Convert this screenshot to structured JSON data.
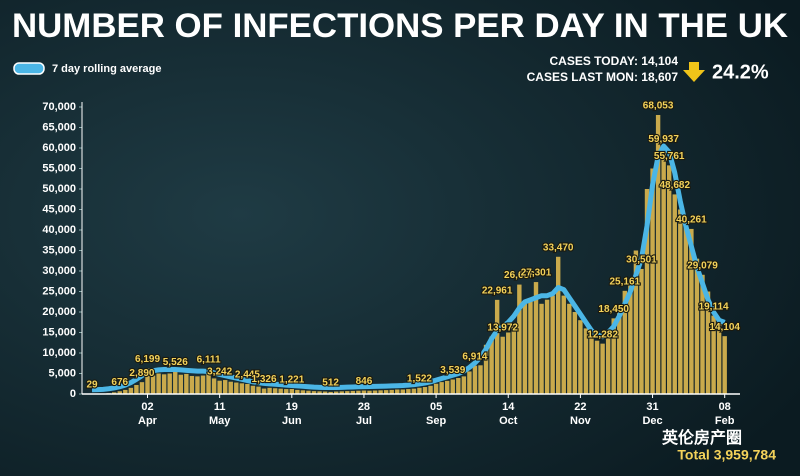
{
  "chart_data": {
    "type": "bar",
    "title": "NUMBER OF INFECTIONS PER DAY IN THE UK",
    "annotations": {
      "cases_today": "CASES TODAY: 14,104",
      "cases_last_mon": "CASES LAST MON: 18,607",
      "change": "24.2%",
      "total": "Total 3,959,784",
      "watermark": "英伦房产圈"
    },
    "categories": [
      null,
      null,
      null,
      null,
      null,
      null,
      null,
      null,
      null,
      null,
      "02 Apr",
      null,
      null,
      null,
      null,
      null,
      null,
      null,
      null,
      null,
      null,
      null,
      null,
      "11 May",
      null,
      null,
      null,
      null,
      null,
      null,
      null,
      null,
      null,
      null,
      null,
      null,
      "19 Jun",
      null,
      null,
      null,
      null,
      null,
      null,
      null,
      null,
      null,
      null,
      null,
      null,
      "28 Jul",
      null,
      null,
      null,
      null,
      null,
      null,
      null,
      null,
      null,
      null,
      null,
      null,
      "05 Sep",
      null,
      null,
      null,
      null,
      null,
      null,
      null,
      null,
      null,
      null,
      null,
      null,
      "14 Oct",
      null,
      null,
      null,
      null,
      null,
      null,
      null,
      null,
      null,
      null,
      null,
      null,
      "22 Nov",
      null,
      null,
      null,
      null,
      null,
      null,
      null,
      null,
      null,
      null,
      null,
      null,
      "31 Dec",
      null,
      null,
      null,
      null,
      null,
      null,
      null,
      null,
      null,
      null,
      null,
      null,
      "08 Feb"
    ],
    "values": [
      29,
      50,
      80,
      200,
      400,
      676,
      1000,
      1500,
      2200,
      2890,
      6199,
      4500,
      5000,
      4800,
      5000,
      5526,
      4700,
      4900,
      4400,
      4300,
      4500,
      6111,
      3800,
      3242,
      3400,
      3000,
      2800,
      2600,
      2445,
      2000,
      1800,
      1326,
      1500,
      1400,
      1300,
      1200,
      1221,
      1000,
      900,
      800,
      700,
      650,
      600,
      512,
      600,
      650,
      700,
      750,
      800,
      846,
      800,
      850,
      900,
      950,
      1000,
      1100,
      1100,
      1200,
      1300,
      1522,
      1700,
      2000,
      2500,
      2900,
      3200,
      3539,
      3900,
      4300,
      5500,
      6914,
      7000,
      12000,
      14000,
      22961,
      13972,
      15000,
      17000,
      26688,
      22000,
      23000,
      27301,
      22000,
      23000,
      24000,
      33470,
      24000,
      22000,
      20000,
      18000,
      16000,
      14000,
      13000,
      12282,
      15000,
      18450,
      20000,
      25161,
      27000,
      35000,
      30501,
      50000,
      55000,
      68053,
      59937,
      55761,
      48682,
      45000,
      42000,
      40261,
      33000,
      29079,
      25000,
      19114,
      18000,
      14104
    ],
    "value_labels": [
      "29",
      null,
      null,
      null,
      null,
      "676",
      null,
      null,
      null,
      "2,890",
      "6,199",
      null,
      null,
      null,
      null,
      "5,526",
      null,
      null,
      null,
      null,
      null,
      "6,111",
      null,
      "3,242",
      null,
      null,
      null,
      null,
      "2,445",
      null,
      null,
      "1,326",
      null,
      null,
      null,
      null,
      "1,221",
      null,
      null,
      null,
      null,
      null,
      null,
      "512",
      null,
      null,
      null,
      null,
      null,
      "846",
      null,
      null,
      null,
      null,
      null,
      null,
      null,
      null,
      null,
      "1,522",
      null,
      null,
      null,
      null,
      null,
      "3,539",
      null,
      null,
      null,
      "6,914",
      null,
      null,
      null,
      "22,961",
      "13,972",
      null,
      null,
      "26,688",
      null,
      null,
      "27,301",
      null,
      null,
      null,
      "33,470",
      null,
      null,
      null,
      null,
      null,
      null,
      null,
      "12,282",
      null,
      "18,450",
      null,
      "25,161",
      null,
      null,
      "30,501",
      null,
      null,
      "68,053",
      "59,937",
      "55,761",
      "48,682",
      null,
      null,
      "40,261",
      null,
      "29,079",
      null,
      "19,114",
      null,
      "14,104"
    ],
    "color": "#c9aa4c",
    "rolling_average": {
      "name": "7 day rolling average",
      "color": "#4bb6e6",
      "values": [
        50,
        80,
        150,
        300,
        500,
        800,
        1200,
        1800,
        2600,
        3500,
        4300,
        4700,
        4900,
        5000,
        5000,
        5000,
        4900,
        4800,
        4700,
        4600,
        4600,
        4500,
        4200,
        3800,
        3500,
        3200,
        2900,
        2600,
        2300,
        2000,
        1800,
        1600,
        1500,
        1400,
        1300,
        1200,
        1100,
        1000,
        900,
        800,
        700,
        650,
        620,
        600,
        620,
        650,
        700,
        740,
        780,
        820,
        850,
        880,
        920,
        960,
        1000,
        1050,
        1100,
        1200,
        1300,
        1500,
        1700,
        2000,
        2400,
        2800,
        3200,
        3600,
        4000,
        4600,
        5500,
        6600,
        8000,
        10000,
        12500,
        14500,
        15500,
        16500,
        18000,
        20000,
        21500,
        22000,
        22500,
        23000,
        23000,
        23500,
        25000,
        24500,
        22500,
        20500,
        18500,
        16500,
        14500,
        13500,
        13000,
        14000,
        15500,
        18000,
        21000,
        24000,
        28000,
        32000,
        40000,
        50000,
        57000,
        59500,
        58000,
        53000,
        46000,
        40000,
        35000,
        30000,
        26000,
        22000,
        19000,
        17000,
        16500
      ]
    },
    "ylim": [
      0,
      70000
    ],
    "yticks": [
      0,
      {
        "value": 5000,
        "label": "5,000"
      },
      {
        "value": 10000,
        "label": "10,000"
      },
      {
        "value": 15000,
        "label": "15,000"
      },
      {
        "value": 20000,
        "label": "20,000"
      },
      {
        "value": 25000,
        "label": "25,000"
      },
      {
        "value": 30000,
        "label": "30,000"
      },
      {
        "value": 35000,
        "label": "35,000"
      },
      {
        "value": 40000,
        "label": "40,000"
      },
      {
        "value": 45000,
        "label": "45,000"
      },
      {
        "value": 50000,
        "label": "50,000"
      },
      {
        "value": 55000,
        "label": "55,000"
      },
      {
        "value": 60000,
        "label": "60,000"
      },
      {
        "value": 65000,
        "label": "65,000"
      },
      {
        "value": 70000,
        "label": "70,000"
      }
    ],
    "grid": false
  }
}
